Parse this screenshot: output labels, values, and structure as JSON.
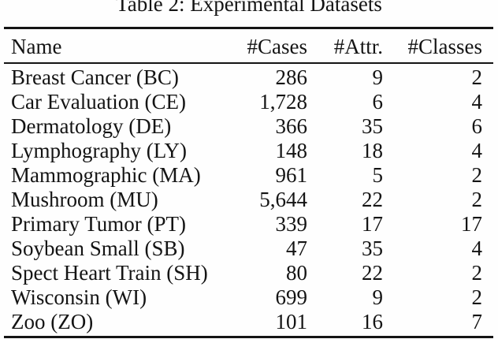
{
  "table": {
    "title": "Table 2: Experimental Datasets",
    "columns": [
      "Name",
      "#Cases",
      "#Attr.",
      "#Classes"
    ],
    "rows": [
      [
        "Breast Cancer (BC)",
        "286",
        "9",
        "2"
      ],
      [
        "Car Evaluation (CE)",
        "1,728",
        "6",
        "4"
      ],
      [
        "Dermatology (DE)",
        "366",
        "35",
        "6"
      ],
      [
        "Lymphography (LY)",
        "148",
        "18",
        "4"
      ],
      [
        "Mammographic (MA)",
        "961",
        "5",
        "2"
      ],
      [
        "Mushroom (MU)",
        "5,644",
        "22",
        "2"
      ],
      [
        "Primary Tumor (PT)",
        "339",
        "17",
        "17"
      ],
      [
        "Soybean Small (SB)",
        "47",
        "35",
        "4"
      ],
      [
        "Spect Heart Train (SH)",
        "80",
        "22",
        "2"
      ],
      [
        "Wisconsin (WI)",
        "699",
        "9",
        "2"
      ],
      [
        "Zoo (ZO)",
        "101",
        "16",
        "7"
      ]
    ],
    "text_color": "#141414",
    "background_color": "#fefefe"
  }
}
